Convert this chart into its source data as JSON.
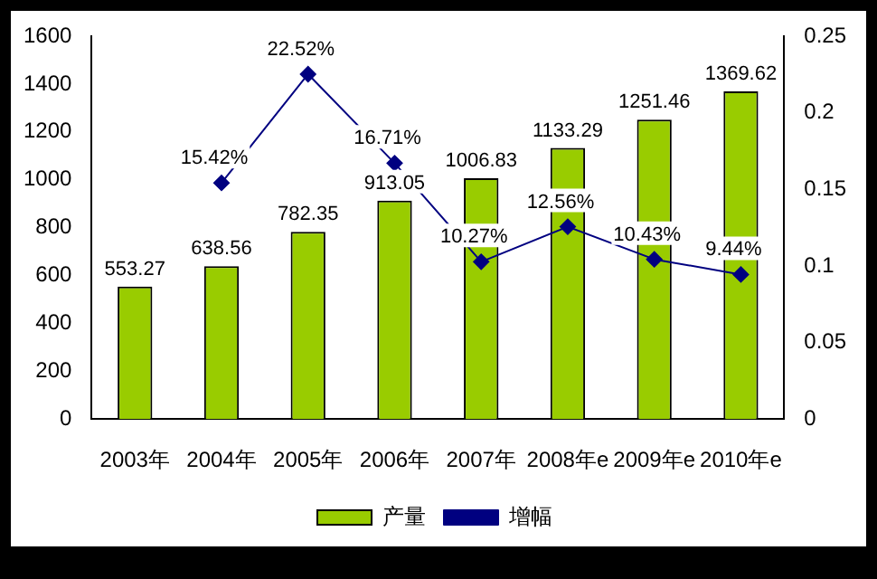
{
  "chart_data": {
    "type": "bar",
    "categories": [
      "2003年",
      "2004年",
      "2005年",
      "2006年",
      "2007年",
      "2008年e",
      "2009年e",
      "2010年e"
    ],
    "series": [
      {
        "name": "产量",
        "color": "#99cc00",
        "values": [
          553.27,
          638.56,
          782.35,
          913.05,
          1006.83,
          1133.29,
          1251.46,
          1369.62
        ],
        "value_labels": [
          "553.27",
          "638.56",
          "782.35",
          "913.05",
          "1006.83",
          "1133.29",
          "1251.46",
          "1369.62"
        ]
      },
      {
        "name": "增幅",
        "type": "line",
        "axis": "y2",
        "color": "#000080",
        "values": [
          null,
          0.1542,
          0.2252,
          0.1671,
          0.1027,
          0.1256,
          0.1043,
          0.0944
        ],
        "value_labels": [
          null,
          "15.42%",
          "22.52%",
          "16.71%",
          "10.27%",
          "12.56%",
          "10.43%",
          "9.44%"
        ]
      }
    ],
    "ylim": [
      0,
      1600
    ],
    "yticks": [
      0,
      200,
      400,
      600,
      800,
      1000,
      1200,
      1400,
      1600
    ],
    "y2lim": [
      0,
      0.25
    ],
    "y2ticks": [
      0,
      0.05,
      0.1,
      0.15,
      0.2,
      0.25
    ],
    "grid": false,
    "legend": "bottom",
    "marker": "diamond",
    "line_style": "solid"
  }
}
